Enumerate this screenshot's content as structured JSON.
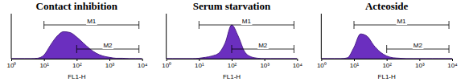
{
  "chart_data": [
    {
      "type": "area",
      "title": "Contact inhibition",
      "xlabel": "FL1-H",
      "log": "x",
      "tick_labels": "x",
      "color": "#6b2fbf",
      "x": [
        1,
        1.58,
        2.51,
        3.98,
        6.31,
        10,
        15.8,
        25.1,
        39.8,
        63.1,
        100,
        158,
        251,
        398,
        631,
        1000,
        1585,
        2512,
        3981,
        6310,
        10000
      ],
      "values": [
        0,
        0,
        0,
        0,
        1,
        8,
        30,
        50,
        60,
        58,
        48,
        35,
        22,
        12,
        6,
        3,
        1,
        1,
        0,
        0,
        0
      ],
      "xlim": [
        1,
        10000
      ],
      "xticks": [
        {
          "value": 1,
          "label": "10⁰"
        },
        {
          "value": 10,
          "label": "10¹"
        },
        {
          "value": 100,
          "label": "10²"
        },
        {
          "value": 1000,
          "label": "10³"
        },
        {
          "value": 10000,
          "label": "10⁴"
        }
      ],
      "ylim": [
        0,
        100
      ],
      "markers": [
        {
          "label": "M1",
          "start": 10,
          "end": 8000
        },
        {
          "label": "M2",
          "start": 100,
          "end": 8000
        }
      ]
    },
    {
      "type": "area",
      "title": "Serum starvation",
      "xlabel": "FL1-H",
      "log": "x",
      "tick_labels": "x",
      "color": "#6b2fbf",
      "x": [
        1,
        1.58,
        2.51,
        3.98,
        6.31,
        10,
        15.8,
        25.1,
        39.8,
        63.1,
        100,
        158,
        251,
        398,
        631,
        1000,
        1585,
        2512,
        3981,
        6310,
        10000
      ],
      "values": [
        0,
        0,
        0,
        0,
        0,
        1,
        3,
        6,
        12,
        35,
        75,
        50,
        15,
        4,
        1,
        0,
        0,
        0,
        0,
        0,
        0
      ],
      "xlim": [
        1,
        10000
      ],
      "xticks": [
        {
          "value": 1,
          "label": "10⁰"
        },
        {
          "value": 10,
          "label": "10¹"
        },
        {
          "value": 100,
          "label": "10²"
        },
        {
          "value": 1000,
          "label": "10³"
        },
        {
          "value": 10000,
          "label": "10⁴"
        }
      ],
      "ylim": [
        0,
        100
      ],
      "markers": [
        {
          "label": "M1",
          "start": 10,
          "end": 8000
        },
        {
          "label": "M2",
          "start": 100,
          "end": 8000
        }
      ]
    },
    {
      "type": "area",
      "title": "Acteoside",
      "xlabel": "FL1-H",
      "log": "x",
      "tick_labels": "x",
      "color": "#6b2fbf",
      "x": [
        1,
        1.58,
        2.51,
        3.98,
        6.31,
        10,
        15.8,
        25.1,
        39.8,
        63.1,
        100,
        158,
        251,
        398,
        631,
        1000,
        1585,
        2512,
        3981,
        6310,
        10000
      ],
      "values": [
        0,
        0,
        0,
        0,
        2,
        25,
        55,
        50,
        30,
        15,
        6,
        2,
        1,
        0,
        0,
        0,
        0,
        0,
        0,
        0,
        0
      ],
      "xlim": [
        1,
        10000
      ],
      "xticks": [
        {
          "value": 1,
          "label": "10⁰"
        },
        {
          "value": 10,
          "label": "10¹"
        },
        {
          "value": 100,
          "label": "10²"
        },
        {
          "value": 1000,
          "label": "10³"
        },
        {
          "value": 10000,
          "label": "10⁴"
        }
      ],
      "ylim": [
        0,
        100
      ],
      "markers": [
        {
          "label": "M1",
          "start": 10,
          "end": 8000
        },
        {
          "label": "M2",
          "start": 100,
          "end": 8000
        }
      ]
    }
  ]
}
